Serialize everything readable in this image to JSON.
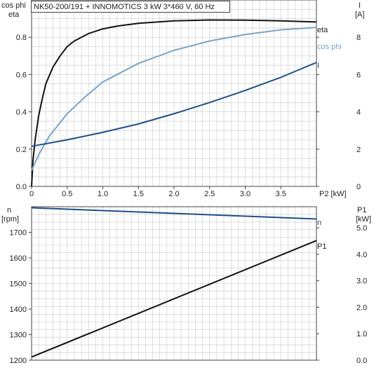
{
  "header": {
    "title": "NK50-200/191 + INNOMOTICS   3 kW   3*460 V, 60 Hz"
  },
  "colors": {
    "eta": "#111111",
    "cos_phi": "#7aa3c6",
    "current": "#1f4f86",
    "speed": "#1f4f86",
    "p1": "#111111",
    "grid": "#c8c8c8",
    "axis": "#444444"
  },
  "chart_data": [
    {
      "type": "line",
      "name": "top",
      "left_axis_labels": [
        "cos phi",
        "eta"
      ],
      "right_axis_labels": [
        "I",
        "[A]"
      ],
      "xlabel": "P2 [kW]",
      "x_ticks": [
        "0",
        "0.5",
        "1.0",
        "1.5",
        "2.0",
        "2.5",
        "3.0",
        "3.5"
      ],
      "y_left_ticks": [
        "0.0",
        "0.2",
        "0.4",
        "0.6",
        "0.8"
      ],
      "y_right_ticks": [
        "0",
        "2",
        "4",
        "6",
        "8"
      ],
      "xlim": [
        0,
        4.0
      ],
      "ylim_left": [
        0,
        1.0
      ],
      "ylim_right": [
        0,
        10
      ],
      "grid": true,
      "series": [
        {
          "name": "eta",
          "axis": "left",
          "color_key": "eta",
          "x": [
            0,
            0.02,
            0.05,
            0.1,
            0.15,
            0.2,
            0.3,
            0.4,
            0.5,
            0.6,
            0.8,
            1.0,
            1.2,
            1.5,
            2.0,
            2.5,
            3.0,
            3.5,
            4.0
          ],
          "y": [
            0.0,
            0.14,
            0.25,
            0.38,
            0.47,
            0.55,
            0.64,
            0.7,
            0.75,
            0.78,
            0.82,
            0.845,
            0.86,
            0.875,
            0.888,
            0.893,
            0.892,
            0.888,
            0.882
          ]
        },
        {
          "name": "cos phi",
          "axis": "left",
          "color_key": "cos_phi",
          "x": [
            0,
            0.1,
            0.25,
            0.5,
            0.75,
            1.0,
            1.5,
            2.0,
            2.5,
            3.0,
            3.5,
            4.0
          ],
          "y": [
            0.085,
            0.17,
            0.27,
            0.39,
            0.48,
            0.56,
            0.66,
            0.73,
            0.78,
            0.815,
            0.84,
            0.853
          ]
        },
        {
          "name": "I",
          "axis": "right",
          "color_key": "current",
          "x": [
            0,
            0.5,
            1.0,
            1.5,
            2.0,
            2.5,
            3.0,
            3.5,
            4.0
          ],
          "y": [
            2.15,
            2.5,
            2.9,
            3.35,
            3.9,
            4.5,
            5.15,
            5.85,
            6.65
          ]
        }
      ]
    },
    {
      "type": "line",
      "name": "bottom",
      "left_axis_labels": [
        "n",
        "[rpm]"
      ],
      "right_axis_labels": [
        "P1",
        "[kW]"
      ],
      "y_left_ticks": [
        "1200",
        "1300",
        "1400",
        "1500",
        "1600",
        "1700"
      ],
      "y_right_ticks": [
        "0.0",
        "1.0",
        "2.0",
        "3.0",
        "4.0",
        "5.0"
      ],
      "xlim": [
        0,
        4.0
      ],
      "ylim_left": [
        1200,
        1800
      ],
      "ylim_right": [
        0,
        5.8
      ],
      "grid": true,
      "series": [
        {
          "name": "n",
          "axis": "left",
          "color_key": "speed",
          "x": [
            0,
            4.0
          ],
          "y": [
            1796,
            1752
          ]
        },
        {
          "name": "P1",
          "axis": "right",
          "color_key": "p1",
          "x": [
            0,
            4.0
          ],
          "y": [
            0.12,
            4.52
          ]
        }
      ]
    }
  ]
}
